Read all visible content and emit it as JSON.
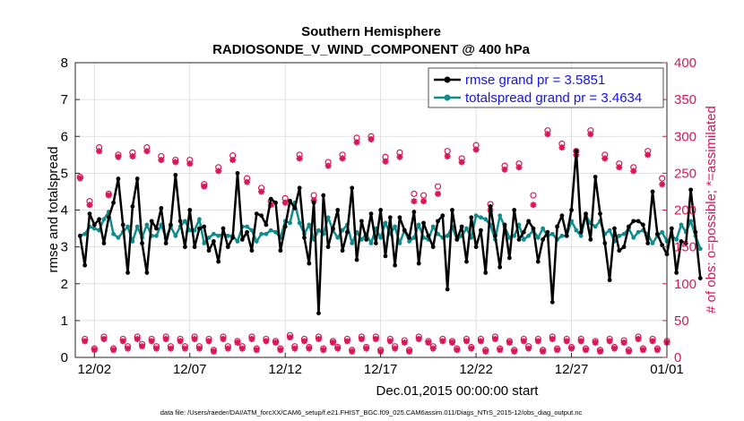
{
  "chart_data": {
    "type": "line",
    "title": [
      "Southern Hemisphere",
      "RADIOSONDE_V_WIND_COMPONENT @ 400 hPa"
    ],
    "xlabel": "Dec.01,2015 00:00:00 start",
    "ylabel_left": "rmse and totalspread",
    "ylabel_right": "# of obs: o=possible; *=assimilated",
    "xlim": [
      0,
      31
    ],
    "ylim_left": [
      0,
      8
    ],
    "ylim_right": [
      0,
      400
    ],
    "x_tick_positions": [
      1,
      6,
      11,
      16,
      21,
      26,
      31
    ],
    "x_tick_labels": [
      "12/02",
      "12/07",
      "12/12",
      "12/17",
      "12/22",
      "12/27",
      "01/01"
    ],
    "y_left_ticks": [
      "0",
      "1",
      "2",
      "3",
      "4",
      "5",
      "6",
      "7",
      "8"
    ],
    "y_right_ticks": [
      "0",
      "50",
      "100",
      "150",
      "200",
      "250",
      "300",
      "350",
      "400"
    ],
    "footnote": "data file: /Users/raeder/DAI/ATM_forcXX/CAM6_setup/f.e21.FHIST_BGC.f09_025.CAM6assim.011/Diags_NTrS_2015-12/obs_diag_output.nc",
    "x_step_days": 0.25,
    "series": [
      {
        "name": "rmse grand pr = 3.5851",
        "axis": "left",
        "color": "#000000",
        "values": [
          3.3,
          2.5,
          3.9,
          3.6,
          3.75,
          3.1,
          3.8,
          4.2,
          4.85,
          3.6,
          2.3,
          4.1,
          4.85,
          3.1,
          2.3,
          3.7,
          3.5,
          4.05,
          3.1,
          3.6,
          4.95,
          3.7,
          3.0,
          4.0,
          3.0,
          3.5,
          3.55,
          2.9,
          3.15,
          2.6,
          3.5,
          3.0,
          3.25,
          5.0,
          3.2,
          3.4,
          2.9,
          3.9,
          3.85,
          3.6,
          4.3,
          4.2,
          2.9,
          3.55,
          4.25,
          4.05,
          4.6,
          3.25,
          2.55,
          4.2,
          1.2,
          4.4,
          3.0,
          3.5,
          4.0,
          2.9,
          3.4,
          4.6,
          2.65,
          3.7,
          3.2,
          3.9,
          3.1,
          4.0,
          2.75,
          3.8,
          2.5,
          3.8,
          3.45,
          3.25,
          3.95,
          2.55,
          3.65,
          3.3,
          3.0,
          3.7,
          3.85,
          1.85,
          4.0,
          3.2,
          3.55,
          2.6,
          3.8,
          3.0,
          3.45,
          2.3,
          4.1,
          3.3,
          2.45,
          3.6,
          2.7,
          4.0,
          3.2,
          3.4,
          3.7,
          3.5,
          2.6,
          3.2,
          3.4,
          1.5,
          3.55,
          3.85,
          3.3,
          4.0,
          5.6,
          3.4,
          3.9,
          3.2,
          4.9,
          3.9,
          3.1,
          2.1,
          3.5,
          2.9,
          3.0,
          3.55,
          3.7,
          3.7,
          3.6,
          3.1,
          4.5,
          3.35,
          3.05,
          2.8,
          3.5,
          2.3,
          3.15,
          3.1,
          4.55,
          3.4,
          2.15
        ]
      },
      {
        "name": "totalspread grand pr = 3.4634",
        "axis": "left",
        "color": "#0f8c8c",
        "values": [
          3.3,
          3.35,
          3.55,
          3.5,
          3.45,
          3.75,
          3.95,
          3.35,
          3.25,
          3.4,
          3.55,
          3.15,
          3.55,
          3.25,
          3.6,
          3.3,
          3.3,
          3.6,
          3.25,
          3.55,
          3.3,
          3.55,
          3.7,
          3.45,
          3.45,
          3.75,
          3.1,
          3.25,
          3.35,
          3.3,
          3.35,
          3.3,
          3.3,
          3.15,
          3.55,
          3.55,
          3.45,
          3.15,
          3.35,
          3.35,
          3.45,
          3.4,
          3.25,
          3.7,
          3.65,
          4.2,
          3.65,
          3.35,
          3.6,
          3.2,
          3.45,
          3.35,
          3.8,
          3.45,
          3.25,
          3.45,
          3.6,
          3.1,
          3.4,
          3.2,
          3.35,
          3.1,
          3.5,
          3.25,
          3.65,
          3.35,
          3.55,
          3.1,
          3.45,
          3.15,
          3.25,
          3.6,
          3.25,
          3.2,
          3.55,
          3.35,
          3.25,
          3.3,
          3.55,
          3.2,
          3.3,
          3.5,
          3.25,
          3.85,
          3.8,
          3.75,
          3.6,
          3.2,
          3.85,
          3.55,
          3.25,
          3.3,
          3.6,
          3.2,
          3.3,
          3.45,
          3.25,
          3.5,
          3.3,
          3.35,
          3.2,
          3.3,
          3.3,
          3.7,
          3.45,
          3.3,
          3.85,
          3.65,
          3.55,
          3.7,
          3.35,
          3.45,
          3.15,
          3.3,
          3.35,
          3.5,
          3.25,
          3.4,
          3.45,
          3.35,
          3.1,
          3.3,
          3.4,
          3.15,
          3.3,
          3.2,
          3.6,
          3.4,
          3.7,
          3.3,
          2.95
        ]
      },
      {
        "name": "obs possible",
        "axis": "right",
        "color": "#d6175b",
        "values": [
          245,
          25,
          212,
          12,
          285,
          28,
          222,
          12,
          275,
          25,
          15,
          278,
          28,
          18,
          285,
          25,
          15,
          273,
          28,
          15,
          268,
          25,
          15,
          268,
          28,
          15,
          235,
          25,
          10,
          258,
          28,
          15,
          274,
          22,
          15,
          243,
          28,
          12,
          230,
          25,
          212,
          22,
          12,
          216,
          30,
          15,
          275,
          25,
          14,
          220,
          28,
          12,
          265,
          22,
          14,
          275,
          25,
          10,
          298,
          28,
          14,
          300,
          28,
          10,
          272,
          25,
          15,
          278,
          23,
          10,
          222,
          28,
          220,
          22,
          15,
          232,
          25,
          280,
          22,
          12,
          270,
          25,
          14,
          288,
          25,
          10,
          208,
          28,
          12,
          260,
          22,
          10,
          263,
          25,
          15,
          220,
          25,
          10,
          308,
          28,
          12,
          290,
          25,
          14,
          280,
          25,
          12,
          308,
          22,
          10,
          275,
          25,
          14,
          263,
          23,
          10,
          258,
          28,
          12,
          280,
          25,
          12,
          243,
          22
        ]
      },
      {
        "name": "obs assimilated",
        "axis": "right",
        "color": "#d6175b",
        "values": [
          243,
          22,
          207,
          10,
          280,
          25,
          220,
          10,
          272,
          22,
          12,
          273,
          25,
          15,
          280,
          22,
          12,
          268,
          25,
          12,
          265,
          22,
          12,
          263,
          25,
          12,
          232,
          22,
          8,
          253,
          25,
          12,
          268,
          20,
          12,
          238,
          25,
          10,
          225,
          22,
          207,
          20,
          10,
          210,
          27,
          12,
          270,
          22,
          12,
          213,
          25,
          10,
          260,
          20,
          12,
          270,
          22,
          8,
          292,
          25,
          12,
          296,
          25,
          8,
          266,
          22,
          12,
          272,
          20,
          8,
          212,
          25,
          212,
          20,
          12,
          222,
          22,
          273,
          20,
          10,
          265,
          22,
          12,
          282,
          22,
          8,
          200,
          25,
          10,
          255,
          20,
          8,
          258,
          22,
          12,
          207,
          22,
          8,
          303,
          25,
          10,
          285,
          22,
          12,
          275,
          22,
          10,
          303,
          20,
          8,
          270,
          22,
          12,
          258,
          20,
          8,
          253,
          25,
          10,
          275,
          22,
          10,
          235,
          20
        ]
      }
    ]
  }
}
